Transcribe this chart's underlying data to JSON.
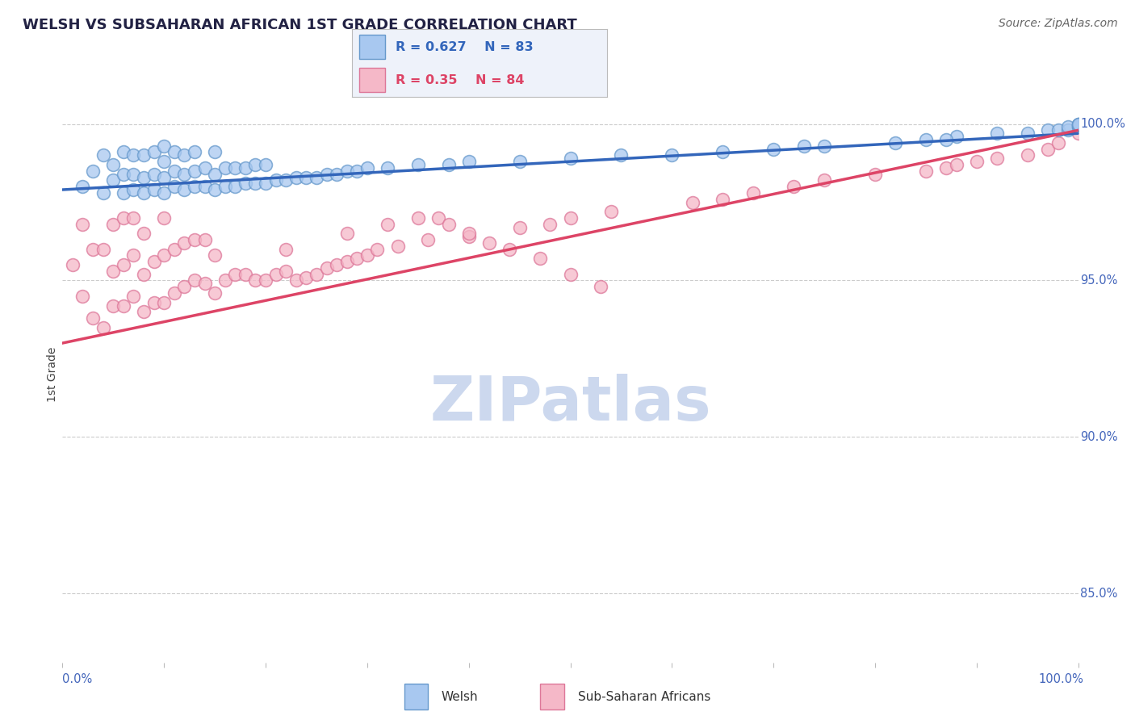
{
  "title": "WELSH VS SUBSAHARAN AFRICAN 1ST GRADE CORRELATION CHART",
  "source_text": "Source: ZipAtlas.com",
  "ylabel": "1st Grade",
  "y_tick_labels": [
    "85.0%",
    "90.0%",
    "95.0%",
    "100.0%"
  ],
  "y_tick_values": [
    0.85,
    0.9,
    0.95,
    1.0
  ],
  "xlim": [
    0.0,
    1.0
  ],
  "ylim": [
    0.828,
    1.012
  ],
  "welsh_R": 0.627,
  "welsh_N": 83,
  "ssa_R": 0.35,
  "ssa_N": 84,
  "welsh_color": "#a8c8f0",
  "welsh_edge_color": "#6699cc",
  "ssa_color": "#f5b8c8",
  "ssa_edge_color": "#dd7799",
  "welsh_line_color": "#3366bb",
  "ssa_line_color": "#dd4466",
  "title_color": "#222244",
  "source_color": "#666666",
  "right_label_color": "#4466bb",
  "grid_color": "#cccccc",
  "watermark_color": "#ccd8ee",
  "welsh_line_start_y": 0.979,
  "welsh_line_end_y": 0.997,
  "ssa_line_start_y": 0.93,
  "ssa_line_end_y": 0.998,
  "welsh_scatter_x": [
    0.02,
    0.03,
    0.04,
    0.04,
    0.05,
    0.05,
    0.06,
    0.06,
    0.06,
    0.07,
    0.07,
    0.07,
    0.08,
    0.08,
    0.08,
    0.09,
    0.09,
    0.09,
    0.1,
    0.1,
    0.1,
    0.1,
    0.11,
    0.11,
    0.11,
    0.12,
    0.12,
    0.12,
    0.13,
    0.13,
    0.13,
    0.14,
    0.14,
    0.15,
    0.15,
    0.15,
    0.16,
    0.16,
    0.17,
    0.17,
    0.18,
    0.18,
    0.19,
    0.19,
    0.2,
    0.2,
    0.21,
    0.22,
    0.23,
    0.24,
    0.25,
    0.26,
    0.27,
    0.28,
    0.29,
    0.3,
    0.32,
    0.35,
    0.38,
    0.4,
    0.45,
    0.5,
    0.55,
    0.6,
    0.65,
    0.7,
    0.73,
    0.75,
    0.82,
    0.85,
    0.88,
    0.92,
    0.95,
    0.97,
    0.98,
    0.99,
    0.99,
    1.0,
    1.0,
    1.0,
    1.0,
    1.0,
    0.87
  ],
  "welsh_scatter_y": [
    0.98,
    0.985,
    0.978,
    0.99,
    0.982,
    0.987,
    0.978,
    0.984,
    0.991,
    0.979,
    0.984,
    0.99,
    0.978,
    0.983,
    0.99,
    0.979,
    0.984,
    0.991,
    0.978,
    0.983,
    0.988,
    0.993,
    0.98,
    0.985,
    0.991,
    0.979,
    0.984,
    0.99,
    0.98,
    0.985,
    0.991,
    0.98,
    0.986,
    0.979,
    0.984,
    0.991,
    0.98,
    0.986,
    0.98,
    0.986,
    0.981,
    0.986,
    0.981,
    0.987,
    0.981,
    0.987,
    0.982,
    0.982,
    0.983,
    0.983,
    0.983,
    0.984,
    0.984,
    0.985,
    0.985,
    0.986,
    0.986,
    0.987,
    0.987,
    0.988,
    0.988,
    0.989,
    0.99,
    0.99,
    0.991,
    0.992,
    0.993,
    0.993,
    0.994,
    0.995,
    0.996,
    0.997,
    0.997,
    0.998,
    0.998,
    0.998,
    0.999,
    0.999,
    0.999,
    1.0,
    1.0,
    1.0,
    0.995
  ],
  "ssa_scatter_x": [
    0.01,
    0.02,
    0.02,
    0.03,
    0.03,
    0.04,
    0.04,
    0.05,
    0.05,
    0.05,
    0.06,
    0.06,
    0.06,
    0.07,
    0.07,
    0.07,
    0.08,
    0.08,
    0.08,
    0.09,
    0.09,
    0.1,
    0.1,
    0.1,
    0.11,
    0.11,
    0.12,
    0.12,
    0.13,
    0.13,
    0.14,
    0.14,
    0.15,
    0.15,
    0.16,
    0.17,
    0.18,
    0.19,
    0.2,
    0.21,
    0.22,
    0.23,
    0.24,
    0.25,
    0.26,
    0.27,
    0.28,
    0.29,
    0.3,
    0.31,
    0.33,
    0.36,
    0.4,
    0.45,
    0.48,
    0.5,
    0.54,
    0.62,
    0.65,
    0.68,
    0.72,
    0.75,
    0.8,
    0.85,
    0.87,
    0.88,
    0.9,
    0.92,
    0.95,
    0.97,
    0.98,
    1.0,
    0.22,
    0.28,
    0.32,
    0.35,
    0.37,
    0.38,
    0.4,
    0.42,
    0.44,
    0.47,
    0.5,
    0.53
  ],
  "ssa_scatter_y": [
    0.955,
    0.945,
    0.968,
    0.938,
    0.96,
    0.935,
    0.96,
    0.942,
    0.953,
    0.968,
    0.942,
    0.955,
    0.97,
    0.945,
    0.958,
    0.97,
    0.94,
    0.952,
    0.965,
    0.943,
    0.956,
    0.943,
    0.958,
    0.97,
    0.946,
    0.96,
    0.948,
    0.962,
    0.95,
    0.963,
    0.949,
    0.963,
    0.946,
    0.958,
    0.95,
    0.952,
    0.952,
    0.95,
    0.95,
    0.952,
    0.953,
    0.95,
    0.951,
    0.952,
    0.954,
    0.955,
    0.956,
    0.957,
    0.958,
    0.96,
    0.961,
    0.963,
    0.964,
    0.967,
    0.968,
    0.97,
    0.972,
    0.975,
    0.976,
    0.978,
    0.98,
    0.982,
    0.984,
    0.985,
    0.986,
    0.987,
    0.988,
    0.989,
    0.99,
    0.992,
    0.994,
    0.997,
    0.96,
    0.965,
    0.968,
    0.97,
    0.97,
    0.968,
    0.965,
    0.962,
    0.96,
    0.957,
    0.952,
    0.948
  ]
}
